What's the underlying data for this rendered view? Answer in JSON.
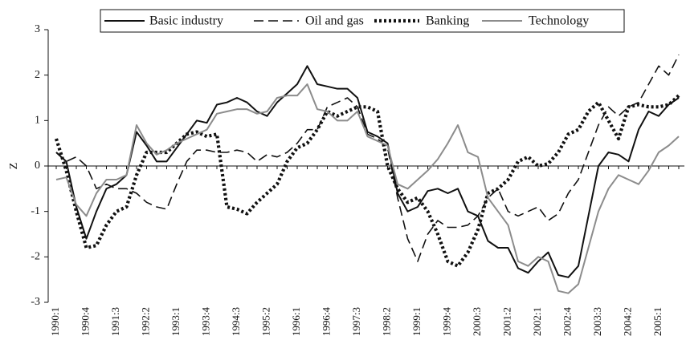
{
  "chart_data": {
    "type": "line",
    "ylabel": "Z",
    "categories": [
      "1990:1",
      null,
      null,
      "1990:4",
      null,
      null,
      "1991:3",
      null,
      null,
      "1992:2",
      null,
      null,
      "1993:1",
      null,
      null,
      "1993:4",
      null,
      null,
      "1994:3",
      null,
      null,
      "1995:2",
      null,
      null,
      "1996:1",
      null,
      null,
      "1996:4",
      null,
      null,
      "1997:3",
      null,
      null,
      "1998:2",
      null,
      null,
      "1999:1",
      null,
      null,
      "1999:4",
      null,
      null,
      "2000:3",
      null,
      null,
      "2001:2",
      null,
      null,
      "2002:1",
      null,
      null,
      "2002:4",
      null,
      null,
      "2003:3",
      null,
      null,
      "2004:2",
      null,
      null,
      "2005:1",
      null,
      null
    ],
    "ylim": [
      -3,
      3
    ],
    "yticks": [
      -3,
      -2,
      -1,
      0,
      1,
      2,
      3
    ],
    "legend": "top",
    "series": [
      {
        "name": "Basic industry",
        "color": "#111111",
        "dash": "solid",
        "values": [
          0.3,
          0.1,
          -0.9,
          -1.6,
          -1.0,
          -0.5,
          -0.4,
          -0.2,
          0.75,
          0.45,
          0.1,
          0.1,
          0.4,
          0.7,
          1.0,
          0.95,
          1.35,
          1.4,
          1.5,
          1.4,
          1.2,
          1.1,
          1.4,
          1.6,
          1.8,
          2.2,
          1.8,
          1.75,
          1.7,
          1.7,
          1.5,
          0.75,
          0.65,
          0.5,
          -0.6,
          -1.0,
          -0.9,
          -0.55,
          -0.5,
          -0.6,
          -0.5,
          -1.0,
          -1.1,
          -1.65,
          -1.8,
          -1.8,
          -2.25,
          -2.35,
          -2.1,
          -1.9,
          -2.4,
          -2.45,
          -2.2,
          -1.1,
          0.0,
          0.3,
          0.25,
          0.1,
          0.8,
          1.2,
          1.1,
          1.35,
          1.5
        ]
      },
      {
        "name": "Oil and gas",
        "color": "#111111",
        "dash": "dashed",
        "values": [
          0.3,
          0.1,
          0.2,
          0.0,
          -0.5,
          -0.4,
          -0.5,
          -0.5,
          -0.6,
          -0.8,
          -0.9,
          -0.95,
          -0.4,
          0.1,
          0.35,
          0.35,
          0.3,
          0.3,
          0.35,
          0.3,
          0.1,
          0.25,
          0.2,
          0.3,
          0.5,
          0.8,
          0.8,
          1.3,
          1.4,
          1.5,
          1.3,
          0.7,
          0.6,
          0.4,
          -0.7,
          -1.6,
          -2.1,
          -1.5,
          -1.2,
          -1.35,
          -1.35,
          -1.3,
          -1.1,
          -0.7,
          -0.5,
          -1.0,
          -1.1,
          -1.0,
          -0.9,
          -1.2,
          -1.05,
          -0.6,
          -0.3,
          0.3,
          0.9,
          1.3,
          1.1,
          1.3,
          1.4,
          1.8,
          2.2,
          2.0,
          2.45
        ]
      },
      {
        "name": "Banking",
        "color": "#111111",
        "dash": "dotted",
        "values": [
          0.6,
          -0.1,
          -1.0,
          -1.8,
          -1.75,
          -1.3,
          -1.0,
          -0.9,
          -0.2,
          0.3,
          0.3,
          0.3,
          0.5,
          0.7,
          0.75,
          0.65,
          0.7,
          -0.9,
          -0.95,
          -1.05,
          -0.8,
          -0.6,
          -0.4,
          0.1,
          0.4,
          0.5,
          0.8,
          1.2,
          1.1,
          1.2,
          1.3,
          1.3,
          1.2,
          0.0,
          -0.5,
          -0.8,
          -0.7,
          -1.0,
          -1.5,
          -2.1,
          -2.2,
          -1.9,
          -1.4,
          -0.6,
          -0.5,
          -0.3,
          0.1,
          0.2,
          0.0,
          0.05,
          0.3,
          0.7,
          0.8,
          1.2,
          1.4,
          1.0,
          0.6,
          1.3,
          1.35,
          1.3,
          1.3,
          1.35,
          1.55
        ]
      },
      {
        "name": "Technology",
        "color": "#8c8c8c",
        "dash": "solid",
        "values": [
          -0.3,
          -0.25,
          -0.85,
          -1.1,
          -0.6,
          -0.3,
          -0.3,
          -0.2,
          0.9,
          0.5,
          0.25,
          0.35,
          0.5,
          0.6,
          0.7,
          0.8,
          1.15,
          1.2,
          1.25,
          1.25,
          1.15,
          1.2,
          1.5,
          1.55,
          1.55,
          1.8,
          1.25,
          1.2,
          1.0,
          1.0,
          1.2,
          0.65,
          0.55,
          0.45,
          -0.4,
          -0.5,
          -0.3,
          -0.1,
          0.15,
          0.5,
          0.9,
          0.3,
          0.2,
          -0.7,
          -1.0,
          -1.3,
          -2.1,
          -2.2,
          -2.0,
          -2.1,
          -2.75,
          -2.8,
          -2.6,
          -1.8,
          -1.0,
          -0.5,
          -0.2,
          -0.3,
          -0.4,
          -0.1,
          0.3,
          0.45,
          0.65
        ]
      }
    ]
  }
}
